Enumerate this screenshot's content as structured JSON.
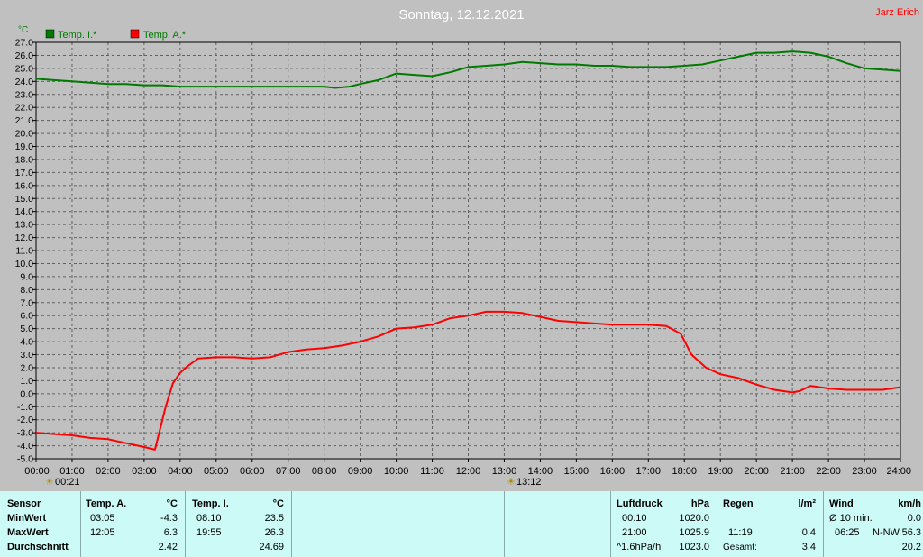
{
  "header": {
    "title": "Sonntag, 12.12.2021",
    "author": "Jarz Erich"
  },
  "colors": {
    "background": "#c0c0c0",
    "plot_bg": "#c0c0c0",
    "inside_temp": "#007a00",
    "outside_temp": "#ff0000",
    "stats_bg": "#ccfaf7"
  },
  "chart_data": {
    "type": "line",
    "y_unit": "°C",
    "ylim": [
      -5.0,
      27.0
    ],
    "y_ticks": [
      "27.0",
      "26.0",
      "25.0",
      "24.0",
      "23.0",
      "22.0",
      "21.0",
      "20.0",
      "19.0",
      "18.0",
      "17.0",
      "16.0",
      "15.0",
      "14.0",
      "13.0",
      "12.0",
      "11.0",
      "10.0",
      "9.0",
      "8.0",
      "7.0",
      "6.0",
      "5.0",
      "4.0",
      "3.0",
      "2.0",
      "1.0",
      "0.0",
      "-1.0",
      "-2.0",
      "-3.0",
      "-4.0",
      "-5.0"
    ],
    "x_ticks": [
      "00:00",
      "01:00",
      "02:00",
      "03:00",
      "04:00",
      "05:00",
      "06:00",
      "07:00",
      "08:00",
      "09:00",
      "10:00",
      "11:00",
      "12:00",
      "13:00",
      "14:00",
      "15:00",
      "16:00",
      "17:00",
      "18:00",
      "19:00",
      "20:00",
      "21:00",
      "22:00",
      "23:00",
      "24:00"
    ],
    "grid": true,
    "legend_position": "top-left",
    "sunrise": "00:21",
    "sunset": "13:12",
    "series": [
      {
        "name": "Temp. I.*",
        "color": "#007a00",
        "x": [
          0,
          0.5,
          1,
          1.5,
          2,
          2.5,
          3,
          3.5,
          4,
          4.5,
          5,
          5.5,
          6,
          6.5,
          7,
          7.5,
          8,
          8.3,
          8.7,
          9,
          9.5,
          10,
          10.5,
          11,
          11.5,
          12,
          12.5,
          13,
          13.5,
          14,
          14.5,
          15,
          15.5,
          16,
          16.5,
          17,
          17.5,
          18,
          18.5,
          19,
          19.5,
          20,
          20.5,
          21,
          21.5,
          22,
          22.5,
          23,
          23.5,
          24
        ],
        "y": [
          24.2,
          24.1,
          24.0,
          23.9,
          23.8,
          23.8,
          23.7,
          23.7,
          23.6,
          23.6,
          23.6,
          23.6,
          23.6,
          23.6,
          23.6,
          23.6,
          23.6,
          23.5,
          23.6,
          23.8,
          24.1,
          24.6,
          24.5,
          24.4,
          24.7,
          25.1,
          25.2,
          25.3,
          25.5,
          25.4,
          25.3,
          25.3,
          25.2,
          25.2,
          25.1,
          25.1,
          25.1,
          25.2,
          25.3,
          25.6,
          25.9,
          26.2,
          26.2,
          26.3,
          26.2,
          25.9,
          25.4,
          25.0,
          24.9,
          24.8
        ]
      },
      {
        "name": "Temp. A.*",
        "color": "#ff0000",
        "x": [
          0,
          0.5,
          1,
          1.5,
          2,
          2.5,
          3,
          3.3,
          3.6,
          3.8,
          4,
          4.2,
          4.5,
          5,
          5.5,
          6,
          6.5,
          7,
          7.5,
          8,
          8.5,
          9,
          9.5,
          10,
          10.5,
          11,
          11.5,
          12,
          12.5,
          13,
          13.5,
          14,
          14.5,
          15,
          15.5,
          16,
          16.5,
          17,
          17.5,
          17.9,
          18.2,
          18.6,
          19,
          19.5,
          20,
          20.5,
          21,
          21.2,
          21.5,
          22,
          22.5,
          23,
          23.5,
          24
        ],
        "y": [
          -3.0,
          -3.1,
          -3.2,
          -3.4,
          -3.5,
          -3.8,
          -4.1,
          -4.3,
          -1.0,
          0.8,
          1.6,
          2.1,
          2.7,
          2.8,
          2.8,
          2.7,
          2.8,
          3.2,
          3.4,
          3.5,
          3.7,
          4.0,
          4.4,
          5.0,
          5.1,
          5.3,
          5.8,
          6.0,
          6.3,
          6.3,
          6.2,
          5.9,
          5.6,
          5.5,
          5.4,
          5.3,
          5.3,
          5.3,
          5.2,
          4.6,
          3.0,
          2.0,
          1.5,
          1.2,
          0.7,
          0.3,
          0.1,
          0.2,
          0.6,
          0.4,
          0.3,
          0.3,
          0.3,
          0.5
        ]
      }
    ]
  },
  "stats": {
    "sensor": {
      "header": "Sensor",
      "rows": [
        "MinWert",
        "MaxWert",
        "Durchschnitt"
      ]
    },
    "temp_a": {
      "header": "Temp. A.",
      "unit": "°C",
      "min_time": "03:05",
      "min_val": "-4.3",
      "max_time": "12:05",
      "max_val": "6.3",
      "avg": "2.42"
    },
    "temp_i": {
      "header": "Temp. I.",
      "unit": "°C",
      "min_time": "08:10",
      "min_val": "23.5",
      "max_time": "19:55",
      "max_val": "26.3",
      "avg": "24.69"
    },
    "luftdruck": {
      "header": "Luftdruck",
      "unit": "hPa",
      "min_time": "00:10",
      "min_val": "1020.0",
      "max_time": "21:00",
      "max_val": "1025.9",
      "trend": "^1.6hPa/h",
      "avg": "1023.0"
    },
    "regen": {
      "header": "Regen",
      "unit": "l/m²",
      "max_time": "11:19",
      "max_val": "0.4",
      "total_label": "Gesamt:",
      "total": "3.4"
    },
    "wind": {
      "header": "Wind",
      "unit": "km/h",
      "avg_label": "Ø 10 min.",
      "avg_val": "0.0",
      "max_time": "06:25",
      "max_dir": "N-NW",
      "max_val": "56.3",
      "gust": "20.2"
    }
  }
}
